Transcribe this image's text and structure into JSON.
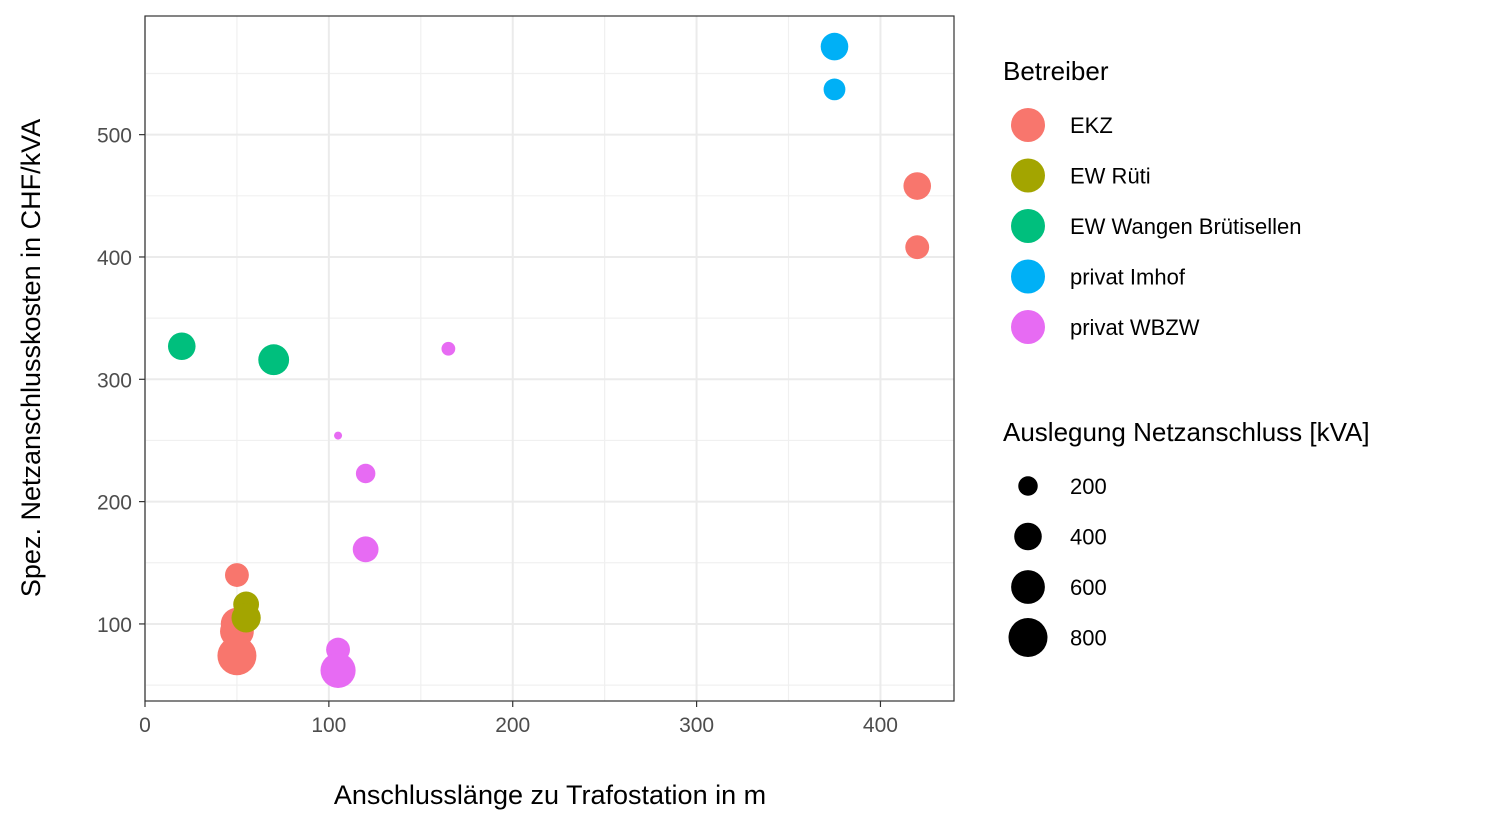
{
  "chart_data": {
    "type": "scatter",
    "xlabel": "Anschlusslänge zu Trafostation in m",
    "ylabel": "Spez. Netzanschlusskosten in CHF/kVA",
    "xlim": [
      0,
      440
    ],
    "ylim": [
      37,
      597
    ],
    "xticks": [
      0,
      100,
      200,
      300,
      400
    ],
    "yticks": [
      100,
      200,
      300,
      400,
      500
    ],
    "grid": true,
    "legend_placement": "right",
    "color_legend": {
      "title": "Betreiber",
      "entries": [
        {
          "name": "EKZ",
          "color": "#F8766D"
        },
        {
          "name": "EW Rüti",
          "color": "#A3A500"
        },
        {
          "name": "EW Wangen Brütisellen",
          "color": "#00BF7D"
        },
        {
          "name": "privat Imhof",
          "color": "#00B0F6"
        },
        {
          "name": "privat WBZW",
          "color": "#E76BF3"
        }
      ]
    },
    "size_legend": {
      "title": "Auslegung Netzanschluss [kVA]",
      "entries": [
        200,
        400,
        600,
        800
      ]
    },
    "points": [
      {
        "group": "EKZ",
        "x": 50,
        "y": 140,
        "size": 300
      },
      {
        "group": "EKZ",
        "x": 50,
        "y": 100,
        "size": 550
      },
      {
        "group": "EKZ",
        "x": 50,
        "y": 94,
        "size": 600
      },
      {
        "group": "EKZ",
        "x": 50,
        "y": 74,
        "size": 800
      },
      {
        "group": "EKZ",
        "x": 420,
        "y": 458,
        "size": 400
      },
      {
        "group": "EKZ",
        "x": 420,
        "y": 408,
        "size": 300
      },
      {
        "group": "EW Rüti",
        "x": 55,
        "y": 116,
        "size": 350
      },
      {
        "group": "EW Rüti",
        "x": 55,
        "y": 105,
        "size": 450
      },
      {
        "group": "EW Wangen Brütisellen",
        "x": 20,
        "y": 327,
        "size": 400
      },
      {
        "group": "EW Wangen Brütisellen",
        "x": 70,
        "y": 316,
        "size": 500
      },
      {
        "group": "privat Imhof",
        "x": 375,
        "y": 572,
        "size": 400
      },
      {
        "group": "privat Imhof",
        "x": 375,
        "y": 537,
        "size": 250
      },
      {
        "group": "privat WBZW",
        "x": 165,
        "y": 325,
        "size": 100
      },
      {
        "group": "privat WBZW",
        "x": 105,
        "y": 254,
        "size": 30
      },
      {
        "group": "privat WBZW",
        "x": 120,
        "y": 223,
        "size": 200
      },
      {
        "group": "privat WBZW",
        "x": 120,
        "y": 161,
        "size": 350
      },
      {
        "group": "privat WBZW",
        "x": 105,
        "y": 79,
        "size": 300
      },
      {
        "group": "privat WBZW",
        "x": 105,
        "y": 62,
        "size": 650
      }
    ]
  }
}
